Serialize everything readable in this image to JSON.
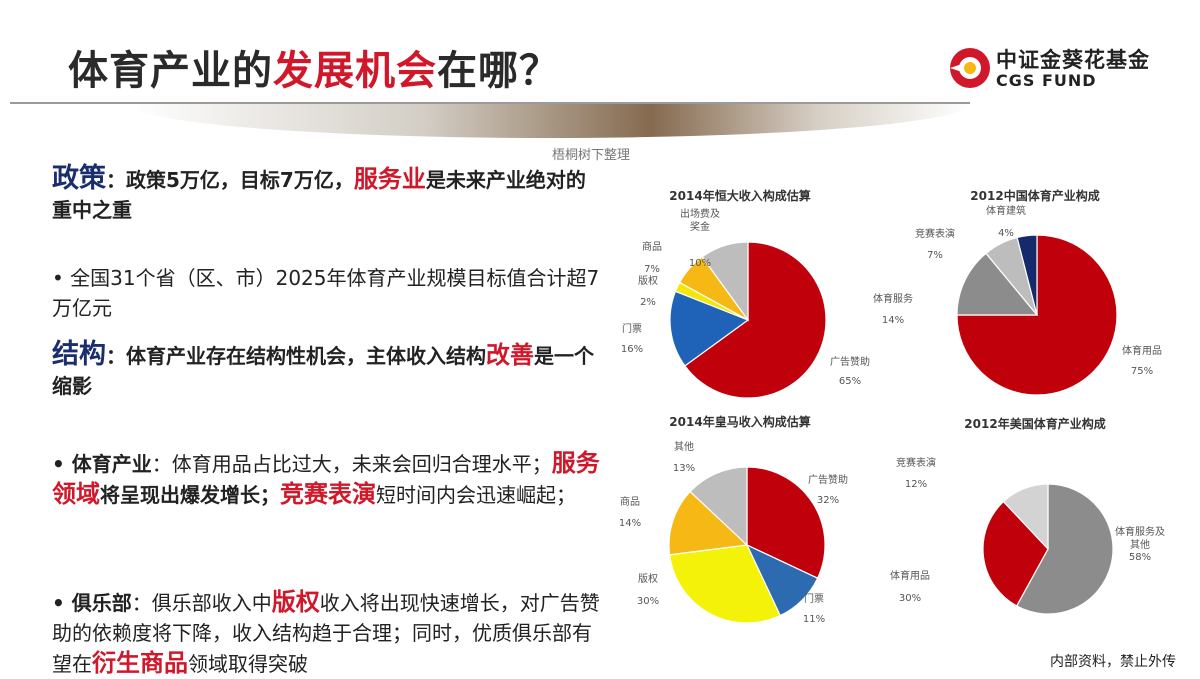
{
  "header": {
    "title_part1": "体育产业的",
    "title_highlight": "发展机会",
    "title_part2": "在哪？",
    "logo_cn": "中证金葵花基金",
    "logo_en": "CGS FUND",
    "watermark": "梧桐树下整理"
  },
  "sections": {
    "policy": {
      "heading": "政策",
      "text1": "：政策5万亿，目标7万亿，",
      "highlight": "服务业",
      "text2": "是未来产业绝对的重中之重"
    },
    "policy_bullet": "• 全国31个省（区、市）2025年体育产业规模目标值合计超7万亿元",
    "structure": {
      "heading": "结构",
      "text1": "：体育产业存在结构性机会，主体收入结构",
      "highlight": "改善",
      "text2": "是一个缩影"
    },
    "industry": {
      "lead": "• 体育产业",
      "text1": "：体育用品占比过大，未来会回归合理水平；",
      "h1": "服务领域",
      "text2": "将呈现出爆发增长；",
      "h2": "竞赛表演",
      "text3": "短时间内会迅速崛起；"
    },
    "club": {
      "lead": "• 俱乐部",
      "text1": "：俱乐部收入中",
      "h1": "版权",
      "text2": "收入将出现快速增长，对广告赞助的依赖度将下降，收入结构趋于合理；同时，优质俱乐部有望在",
      "h2": "衍生商品",
      "text3": "领域取得突破"
    }
  },
  "footer": "内部资料，禁止外传",
  "chart_data": [
    {
      "type": "pie",
      "title": "2014年恒大收入构成估算",
      "slices": [
        {
          "name": "广告赞助",
          "value": 65,
          "label": "65%",
          "color": "#c0000b"
        },
        {
          "name": "门票",
          "value": 16,
          "label": "16%",
          "color": "#1f63b8"
        },
        {
          "name": "版权",
          "value": 2,
          "label": "2%",
          "color": "#f5e60a"
        },
        {
          "name": "商品",
          "value": 7,
          "label": "7%",
          "color": "#f5b814"
        },
        {
          "name": "出场费及奖金",
          "value": 10,
          "label": "10%",
          "color": "#bdbdbd"
        }
      ]
    },
    {
      "type": "pie",
      "title": "2012中国体育产业构成",
      "slices": [
        {
          "name": "体育用品",
          "value": 75,
          "label": "75%",
          "color": "#c0000b"
        },
        {
          "name": "体育服务",
          "value": 14,
          "label": "14%",
          "color": "#8c8c8c"
        },
        {
          "name": "竞赛表演",
          "value": 7,
          "label": "7%",
          "color": "#bdbdbd"
        },
        {
          "name": "体育建筑",
          "value": 4,
          "label": "4%",
          "color": "#142a6b"
        }
      ]
    },
    {
      "type": "pie",
      "title": "2014年皇马收入构成估算",
      "slices": [
        {
          "name": "广告赞助",
          "value": 32,
          "label": "32%",
          "color": "#c0000b"
        },
        {
          "name": "门票",
          "value": 11,
          "label": "11%",
          "color": "#2d6bb0"
        },
        {
          "name": "版权",
          "value": 30,
          "label": "30%",
          "color": "#f5f20a"
        },
        {
          "name": "商品",
          "value": 14,
          "label": "14%",
          "color": "#f5b814"
        },
        {
          "name": "其他",
          "value": 13,
          "label": "13%",
          "color": "#bdbdbd"
        }
      ]
    },
    {
      "type": "pie",
      "title": "2012年美国体育产业构成",
      "slices": [
        {
          "name": "体育服务及其他",
          "value": 58,
          "label": "58%",
          "color": "#8c8c8c"
        },
        {
          "name": "体育用品",
          "value": 30,
          "label": "30%",
          "color": "#c0000b"
        },
        {
          "name": "竞赛表演",
          "value": 12,
          "label": "12%",
          "color": "#d3d3d3"
        }
      ]
    }
  ]
}
